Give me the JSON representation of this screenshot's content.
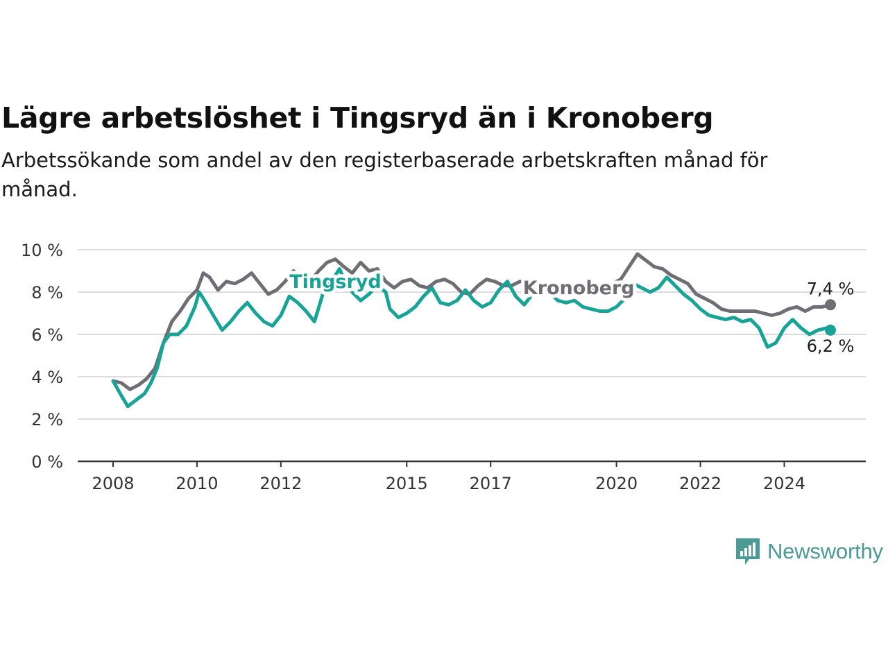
{
  "title": "Lägre arbetslöshet i Tingsryd än i Kronoberg",
  "subtitle": "Arbetssökande som andel av den registerbaserade arbetskraften månad för månad.",
  "logo": {
    "text": "Newsworthy",
    "icon": "newsworthy-chart-bubble-icon"
  },
  "colors": {
    "kronoberg": "#6f6e74",
    "tingsryd": "#17a497",
    "grid": "#dcdcdc",
    "axis": "#333333"
  },
  "chart_data": {
    "type": "line",
    "title": "Lägre arbetslöshet i Tingsryd än i Kronoberg",
    "xlabel": "",
    "ylabel": "",
    "xlim": [
      2008,
      2025.7
    ],
    "ylim": [
      0,
      10
    ],
    "yticks": [
      0,
      2,
      4,
      6,
      8,
      10
    ],
    "ytick_labels": [
      "0 %",
      "2 %",
      "4 %",
      "6 %",
      "8 %",
      "10 %"
    ],
    "xticks": [
      2008,
      2010,
      2012,
      2015,
      2017,
      2020,
      2022,
      2024
    ],
    "xtick_labels": [
      "2008",
      "2010",
      "2012",
      "2015",
      "2017",
      "2020",
      "2022",
      "2024"
    ],
    "grid": true,
    "series": [
      {
        "name": "Kronoberg",
        "end_label": "7,4 %",
        "points": [
          [
            2008.0,
            3.8
          ],
          [
            2008.2,
            3.7
          ],
          [
            2008.4,
            3.4
          ],
          [
            2008.6,
            3.6
          ],
          [
            2008.8,
            3.9
          ],
          [
            2009.0,
            4.4
          ],
          [
            2009.2,
            5.6
          ],
          [
            2009.4,
            6.6
          ],
          [
            2009.6,
            7.1
          ],
          [
            2009.8,
            7.7
          ],
          [
            2010.0,
            8.1
          ],
          [
            2010.15,
            8.9
          ],
          [
            2010.3,
            8.7
          ],
          [
            2010.5,
            8.1
          ],
          [
            2010.7,
            8.5
          ],
          [
            2010.9,
            8.4
          ],
          [
            2011.1,
            8.6
          ],
          [
            2011.3,
            8.9
          ],
          [
            2011.5,
            8.4
          ],
          [
            2011.7,
            7.9
          ],
          [
            2011.9,
            8.1
          ],
          [
            2012.1,
            8.5
          ],
          [
            2012.3,
            9.0
          ],
          [
            2012.5,
            8.7
          ],
          [
            2012.7,
            8.5
          ],
          [
            2012.9,
            9.0
          ],
          [
            2013.1,
            9.4
          ],
          [
            2013.3,
            9.55
          ],
          [
            2013.5,
            9.2
          ],
          [
            2013.7,
            8.9
          ],
          [
            2013.9,
            9.4
          ],
          [
            2014.1,
            9.0
          ],
          [
            2014.3,
            9.1
          ],
          [
            2014.5,
            8.5
          ],
          [
            2014.7,
            8.2
          ],
          [
            2014.9,
            8.5
          ],
          [
            2015.1,
            8.6
          ],
          [
            2015.3,
            8.3
          ],
          [
            2015.5,
            8.2
          ],
          [
            2015.7,
            8.5
          ],
          [
            2015.9,
            8.6
          ],
          [
            2016.1,
            8.4
          ],
          [
            2016.3,
            8.0
          ],
          [
            2016.5,
            7.9
          ],
          [
            2016.7,
            8.3
          ],
          [
            2016.9,
            8.6
          ],
          [
            2017.1,
            8.5
          ],
          [
            2017.3,
            8.3
          ],
          [
            2017.5,
            8.3
          ],
          [
            2017.7,
            8.5
          ],
          [
            2017.9,
            8.5
          ],
          [
            2018.1,
            8.3
          ],
          [
            2018.3,
            8.2
          ],
          [
            2018.5,
            8.4
          ],
          [
            2018.7,
            8.1
          ],
          [
            2018.9,
            8.0
          ],
          [
            2019.1,
            8.2
          ],
          [
            2019.3,
            8.0
          ],
          [
            2019.5,
            8.1
          ],
          [
            2019.7,
            8.3
          ],
          [
            2019.9,
            8.4
          ],
          [
            2020.1,
            8.6
          ],
          [
            2020.3,
            9.2
          ],
          [
            2020.5,
            9.8
          ],
          [
            2020.7,
            9.5
          ],
          [
            2020.9,
            9.2
          ],
          [
            2021.1,
            9.1
          ],
          [
            2021.3,
            8.8
          ],
          [
            2021.5,
            8.6
          ],
          [
            2021.7,
            8.4
          ],
          [
            2021.9,
            7.9
          ],
          [
            2022.1,
            7.7
          ],
          [
            2022.3,
            7.5
          ],
          [
            2022.5,
            7.2
          ],
          [
            2022.7,
            7.1
          ],
          [
            2022.9,
            7.1
          ],
          [
            2023.1,
            7.1
          ],
          [
            2023.3,
            7.1
          ],
          [
            2023.5,
            7.0
          ],
          [
            2023.7,
            6.9
          ],
          [
            2023.9,
            7.0
          ],
          [
            2024.1,
            7.2
          ],
          [
            2024.3,
            7.3
          ],
          [
            2024.5,
            7.1
          ],
          [
            2024.7,
            7.3
          ],
          [
            2024.9,
            7.3
          ],
          [
            2025.1,
            7.4
          ]
        ]
      },
      {
        "name": "Tingsryd",
        "end_label": "6,2 %",
        "points": [
          [
            2008.0,
            3.8
          ],
          [
            2008.2,
            3.1
          ],
          [
            2008.35,
            2.6
          ],
          [
            2008.55,
            2.9
          ],
          [
            2008.75,
            3.2
          ],
          [
            2008.9,
            3.7
          ],
          [
            2009.05,
            4.4
          ],
          [
            2009.2,
            5.6
          ],
          [
            2009.35,
            6.0
          ],
          [
            2009.55,
            6.0
          ],
          [
            2009.75,
            6.4
          ],
          [
            2009.95,
            7.3
          ],
          [
            2010.05,
            8.0
          ],
          [
            2010.15,
            7.7
          ],
          [
            2010.3,
            7.2
          ],
          [
            2010.45,
            6.7
          ],
          [
            2010.6,
            6.2
          ],
          [
            2010.8,
            6.6
          ],
          [
            2011.0,
            7.1
          ],
          [
            2011.2,
            7.5
          ],
          [
            2011.4,
            7.0
          ],
          [
            2011.6,
            6.6
          ],
          [
            2011.8,
            6.4
          ],
          [
            2012.0,
            6.9
          ],
          [
            2012.2,
            7.8
          ],
          [
            2012.4,
            7.5
          ],
          [
            2012.6,
            7.1
          ],
          [
            2012.8,
            6.6
          ],
          [
            2013.0,
            7.9
          ],
          [
            2013.2,
            8.5
          ],
          [
            2013.4,
            9.1
          ],
          [
            2013.5,
            8.6
          ],
          [
            2013.7,
            8.0
          ],
          [
            2013.9,
            7.6
          ],
          [
            2014.1,
            7.9
          ],
          [
            2014.3,
            8.3
          ],
          [
            2014.5,
            8.0
          ],
          [
            2014.6,
            7.2
          ],
          [
            2014.8,
            6.8
          ],
          [
            2015.0,
            7.0
          ],
          [
            2015.2,
            7.3
          ],
          [
            2015.4,
            7.8
          ],
          [
            2015.6,
            8.2
          ],
          [
            2015.8,
            7.5
          ],
          [
            2016.0,
            7.4
          ],
          [
            2016.2,
            7.6
          ],
          [
            2016.4,
            8.1
          ],
          [
            2016.6,
            7.6
          ],
          [
            2016.8,
            7.3
          ],
          [
            2017.0,
            7.5
          ],
          [
            2017.2,
            8.1
          ],
          [
            2017.4,
            8.5
          ],
          [
            2017.6,
            7.8
          ],
          [
            2017.8,
            7.4
          ],
          [
            2018.0,
            7.9
          ],
          [
            2018.2,
            8.3
          ],
          [
            2018.4,
            8.0
          ],
          [
            2018.6,
            7.6
          ],
          [
            2018.8,
            7.5
          ],
          [
            2019.0,
            7.6
          ],
          [
            2019.2,
            7.3
          ],
          [
            2019.4,
            7.2
          ],
          [
            2019.6,
            7.1
          ],
          [
            2019.8,
            7.1
          ],
          [
            2020.0,
            7.3
          ],
          [
            2020.2,
            7.7
          ],
          [
            2020.4,
            8.4
          ],
          [
            2020.6,
            8.2
          ],
          [
            2020.8,
            8.0
          ],
          [
            2021.0,
            8.2
          ],
          [
            2021.2,
            8.7
          ],
          [
            2021.4,
            8.3
          ],
          [
            2021.6,
            7.9
          ],
          [
            2021.8,
            7.6
          ],
          [
            2022.0,
            7.2
          ],
          [
            2022.2,
            6.9
          ],
          [
            2022.4,
            6.8
          ],
          [
            2022.6,
            6.7
          ],
          [
            2022.8,
            6.8
          ],
          [
            2023.0,
            6.6
          ],
          [
            2023.2,
            6.7
          ],
          [
            2023.4,
            6.3
          ],
          [
            2023.6,
            5.4
          ],
          [
            2023.8,
            5.6
          ],
          [
            2024.0,
            6.3
          ],
          [
            2024.2,
            6.7
          ],
          [
            2024.4,
            6.3
          ],
          [
            2024.6,
            6.0
          ],
          [
            2024.8,
            6.2
          ],
          [
            2025.0,
            6.3
          ],
          [
            2025.1,
            6.2
          ]
        ]
      }
    ],
    "series_labels": [
      {
        "series": "Tingsryd",
        "text": "Tingsryd",
        "x": 2013.3,
        "y": 8.2
      },
      {
        "series": "Kronoberg",
        "text": "Kronoberg",
        "x": 2019.1,
        "y": 7.9
      }
    ]
  }
}
